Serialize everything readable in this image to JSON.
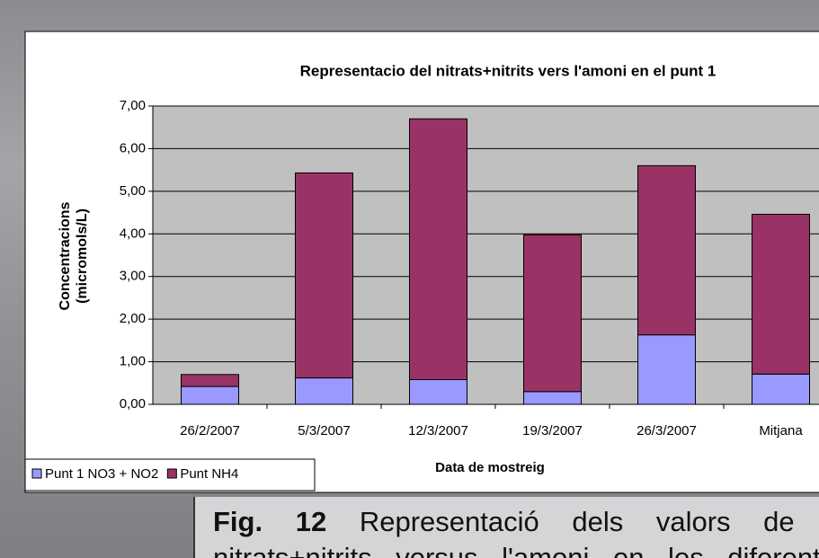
{
  "chart_data": {
    "type": "stacked-bar",
    "title": "Representacio del nitrats+nitrits vers l'amoni en el punt 1",
    "xlabel": "Data de mostreig",
    "ylabel": [
      "Concentracions",
      "(micromols/L)"
    ],
    "categories": [
      "26/2/2007",
      "5/3/2007",
      "12/3/2007",
      "19/3/2007",
      "26/3/2007",
      "Mitjana"
    ],
    "series": [
      {
        "name": "Punt 1 NO3 + NO2",
        "color": "#9999ff",
        "values": [
          0.42,
          0.62,
          0.58,
          0.3,
          1.63,
          0.71
        ]
      },
      {
        "name": "Punt NH4",
        "color": "#993366",
        "values": [
          0.28,
          4.81,
          6.12,
          3.68,
          3.97,
          3.75
        ]
      }
    ],
    "ylim": [
      0,
      7
    ],
    "yticks": [
      {
        "value": 0,
        "label": "0,00"
      },
      {
        "value": 1,
        "label": "1,00"
      },
      {
        "value": 2,
        "label": "2,00"
      },
      {
        "value": 3,
        "label": "3,00"
      },
      {
        "value": 4,
        "label": "4,00"
      },
      {
        "value": 5,
        "label": "5,00"
      },
      {
        "value": 6,
        "label": "6,00"
      },
      {
        "value": 7,
        "label": "7,00"
      }
    ],
    "grid": true,
    "legend": "bottom-left"
  },
  "caption": {
    "label": "Fig.",
    "number": "12",
    "text": "Representació dels valors de",
    "next_line": "nitrats+nitrits versus l'amoni en les diferents"
  }
}
